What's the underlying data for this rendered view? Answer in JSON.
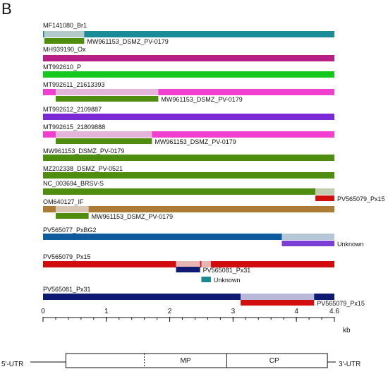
{
  "panel_letter": "B",
  "axis": {
    "unit": "kb",
    "max": 4.6,
    "ticks": [
      {
        "value": 0,
        "label": "0"
      },
      {
        "value": 1,
        "label": "1"
      },
      {
        "value": 2,
        "label": "2"
      },
      {
        "value": 3,
        "label": "3"
      },
      {
        "value": 4,
        "label": "4"
      },
      {
        "value": 4.6,
        "label": "4.6"
      }
    ],
    "minor_step": 0.2
  },
  "genome_map": {
    "left_label": "5'-UTR",
    "right_label": "3'-UTR",
    "box_start": 0.36,
    "box_end": 4.49,
    "dashed_at": 1.6,
    "divider_at": 2.9,
    "regions": [
      {
        "label": "MP",
        "center": 2.25
      },
      {
        "label": "CP",
        "center": 3.65
      }
    ]
  },
  "colors": {
    "teal": "#1b8b98",
    "teal_light": "#b3c9ca",
    "magenta": "#b71d86",
    "green_bright": "#14c81e",
    "pink": "#f13fd0",
    "pink_light": "#e2b5d9",
    "purple": "#7a29d4",
    "olive_green": "#4e8d0f",
    "green_light": "#c3cbb1",
    "brown": "#ac7b36",
    "brown_light": "#d6c6b2",
    "blue": "#0d5a9c",
    "blue_light": "#b5c6d6",
    "red": "#d20d0d",
    "red_light": "#e4b5b3",
    "navy": "#0f1a73",
    "navy_light": "#b8b8d8",
    "unknown_purple": "#7b3fd6",
    "unknown_teal": "#1a8a92"
  },
  "tracks": [
    {
      "name": "MF141080_Br1",
      "segments": [
        {
          "start": 0,
          "end": 0.02,
          "color": "teal"
        },
        {
          "start": 0.02,
          "end": 0.65,
          "color": "teal_light"
        },
        {
          "start": 0.65,
          "end": 4.6,
          "color": "teal"
        }
      ],
      "annotations": [
        {
          "start": 0.02,
          "end": 0.65,
          "color": "olive_green",
          "label": "MW961153_DSMZ_PV-0179"
        }
      ]
    },
    {
      "name": "MH939190_Ox",
      "segments": [
        {
          "start": 0,
          "end": 4.6,
          "color": "magenta"
        }
      ],
      "annotations": []
    },
    {
      "name": "MT992610_P",
      "segments": [
        {
          "start": 0,
          "end": 4.6,
          "color": "green_bright"
        }
      ],
      "annotations": []
    },
    {
      "name": "MT992611_21613393",
      "segments": [
        {
          "start": 0,
          "end": 0.2,
          "color": "pink"
        },
        {
          "start": 0.2,
          "end": 1.82,
          "color": "pink_light"
        },
        {
          "start": 1.82,
          "end": 4.6,
          "color": "pink"
        }
      ],
      "annotations": [
        {
          "start": 0.2,
          "end": 1.82,
          "color": "olive_green",
          "label": "MW961153_DSMZ_PV-0179"
        }
      ]
    },
    {
      "name": "MT992612_2109887",
      "segments": [
        {
          "start": 0,
          "end": 4.6,
          "color": "purple"
        }
      ],
      "annotations": []
    },
    {
      "name": "MT992615_21809888",
      "segments": [
        {
          "start": 0,
          "end": 0.2,
          "color": "pink"
        },
        {
          "start": 0.2,
          "end": 1.72,
          "color": "pink_light"
        },
        {
          "start": 1.72,
          "end": 4.6,
          "color": "pink"
        }
      ],
      "annotations": [
        {
          "start": 0.2,
          "end": 1.72,
          "color": "olive_green",
          "label": "MW961153_DSMZ_PV-0179"
        }
      ]
    },
    {
      "name": "MW961153_DSMZ_PV-0179",
      "segments": [
        {
          "start": 0,
          "end": 4.6,
          "color": "olive_green"
        }
      ],
      "annotations": []
    },
    {
      "name": "MZ202338_DSMZ_PV-0521",
      "segments": [
        {
          "start": 0,
          "end": 4.6,
          "color": "olive_green"
        }
      ],
      "annotations": []
    },
    {
      "name": "NC_003694_BRSV-S",
      "segments": [
        {
          "start": 0,
          "end": 4.3,
          "color": "olive_green"
        },
        {
          "start": 4.3,
          "end": 4.6,
          "color": "green_light"
        }
      ],
      "annotations": [
        {
          "start": 4.3,
          "end": 4.6,
          "color": "red",
          "label": "PV565079_Px15"
        }
      ]
    },
    {
      "name": "OM640127_IF",
      "segments": [
        {
          "start": 0,
          "end": 0.2,
          "color": "brown"
        },
        {
          "start": 0.2,
          "end": 0.72,
          "color": "brown_light"
        },
        {
          "start": 0.72,
          "end": 4.6,
          "color": "brown"
        }
      ],
      "annotations": [
        {
          "start": 0.2,
          "end": 0.72,
          "color": "olive_green",
          "label": "MW961153_DSMZ_PV-0179"
        }
      ]
    },
    {
      "name": "PV565077_PxBG2",
      "segments": [
        {
          "start": 0,
          "end": 3.77,
          "color": "blue"
        },
        {
          "start": 3.77,
          "end": 4.6,
          "color": "blue_light"
        }
      ],
      "annotations": [
        {
          "start": 3.77,
          "end": 4.6,
          "color": "unknown_purple",
          "label": "Unknown"
        }
      ]
    },
    {
      "name": "PV565079_Px15",
      "segments": [
        {
          "start": 0,
          "end": 2.1,
          "color": "red"
        },
        {
          "start": 2.1,
          "end": 2.48,
          "color": "red_light"
        },
        {
          "start": 2.48,
          "end": 2.5,
          "color": "red"
        },
        {
          "start": 2.5,
          "end": 2.65,
          "color": "red_light"
        },
        {
          "start": 2.65,
          "end": 4.6,
          "color": "red"
        }
      ],
      "annotations": [
        {
          "start": 2.1,
          "end": 2.48,
          "color": "navy",
          "label": "PV565081_Px31"
        },
        {
          "start": 2.5,
          "end": 2.65,
          "color": "unknown_teal",
          "label": "Unknown"
        }
      ]
    },
    {
      "name": "PV565081_Px31",
      "segments": [
        {
          "start": 0,
          "end": 3.12,
          "color": "navy"
        },
        {
          "start": 3.12,
          "end": 4.28,
          "color": "navy_light"
        },
        {
          "start": 4.28,
          "end": 4.6,
          "color": "navy"
        }
      ],
      "annotations": [
        {
          "start": 3.12,
          "end": 4.28,
          "color": "red",
          "label": "PV565079_Px15"
        }
      ]
    }
  ]
}
